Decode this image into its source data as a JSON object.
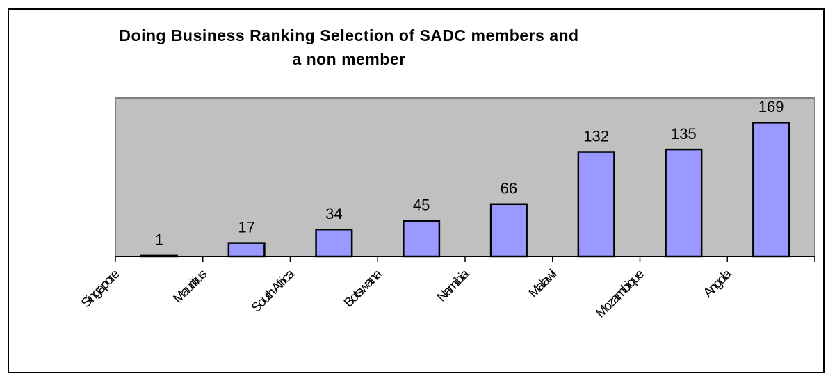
{
  "chart_data": {
    "type": "bar",
    "title": "Doing Business Ranking Selection of SADC members and a non member",
    "categories": [
      "Singapore",
      "Mauritius",
      "South Africa",
      "Botswana",
      "Namibia",
      "Malawi",
      "Mozambique",
      "Angola"
    ],
    "values": [
      1,
      17,
      34,
      45,
      66,
      132,
      135,
      169
    ],
    "color": "#9999ff",
    "plot_background": "#c0c0c0",
    "ylim": [
      0,
      200
    ]
  }
}
